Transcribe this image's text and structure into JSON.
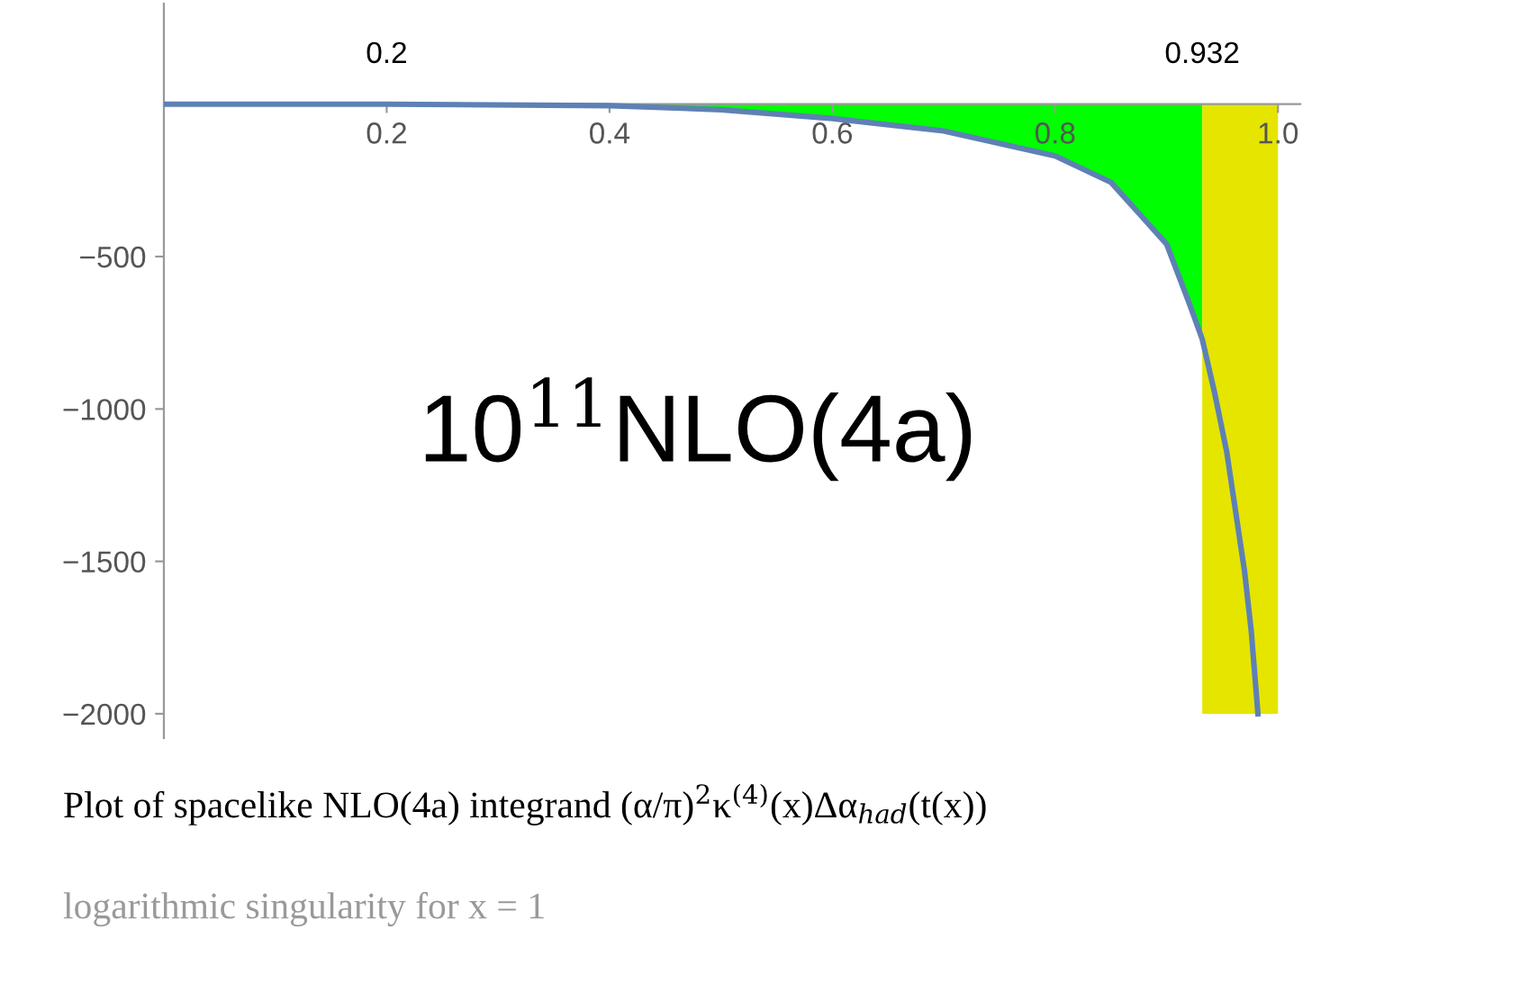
{
  "chart_data": {
    "type": "line",
    "xlim": [
      0,
      1.02
    ],
    "ylim": [
      -2080,
      330
    ],
    "xticks": [
      0.2,
      0.4,
      0.6,
      0.8,
      {
        "value": 1,
        "label": "1.0"
      }
    ],
    "yticks": [
      {
        "value": -500,
        "label": "−500"
      },
      {
        "value": -1000,
        "label": "−1000"
      },
      {
        "value": -1500,
        "label": "−1500"
      },
      {
        "value": -2000,
        "label": "−2000"
      }
    ],
    "grid": false,
    "legend": false,
    "marker": "none",
    "line_style": "solid",
    "series": [
      {
        "type": "area",
        "color": "#00ff00",
        "x": [
          0.2,
          0.4,
          0.5,
          0.6,
          0.7,
          0.8,
          0.85,
          0.9,
          0.92,
          0.932
        ],
        "values": [
          0,
          -5,
          -18,
          -47,
          -88,
          -170,
          -256,
          -459,
          -650,
          -771
        ]
      },
      {
        "type": "area",
        "color": "#e5e500",
        "x": [
          0.932,
          1.0
        ],
        "values": [
          -2000,
          -2000
        ]
      },
      {
        "color": "#5e81b5",
        "x": [
          0,
          0.2,
          0.4,
          0.5,
          0.6,
          0.7,
          0.8,
          0.85,
          0.9,
          0.92,
          0.932,
          0.943,
          0.954,
          0.962,
          0.97,
          0.976,
          0.982
        ],
        "values": [
          0,
          0,
          -5,
          -18,
          -47,
          -88,
          -170,
          -256,
          -459,
          -650,
          -771,
          -945,
          -1141,
          -1337,
          -1533,
          -1729,
          -2000
        ]
      }
    ],
    "annotations": [
      {
        "text": "0.2",
        "x": 0.2,
        "y": 0
      },
      {
        "text": "0.932",
        "x": 0.932,
        "y": 0
      },
      "10$^{11}$NLO(4a)",
      "Plot of spacelike NLO(4a) integrand (α/π)$^{2}$κ$^{(4)}$(x)Δα$_{had}$(t(x))",
      "logarithmic singularity for x = 1"
    ]
  }
}
